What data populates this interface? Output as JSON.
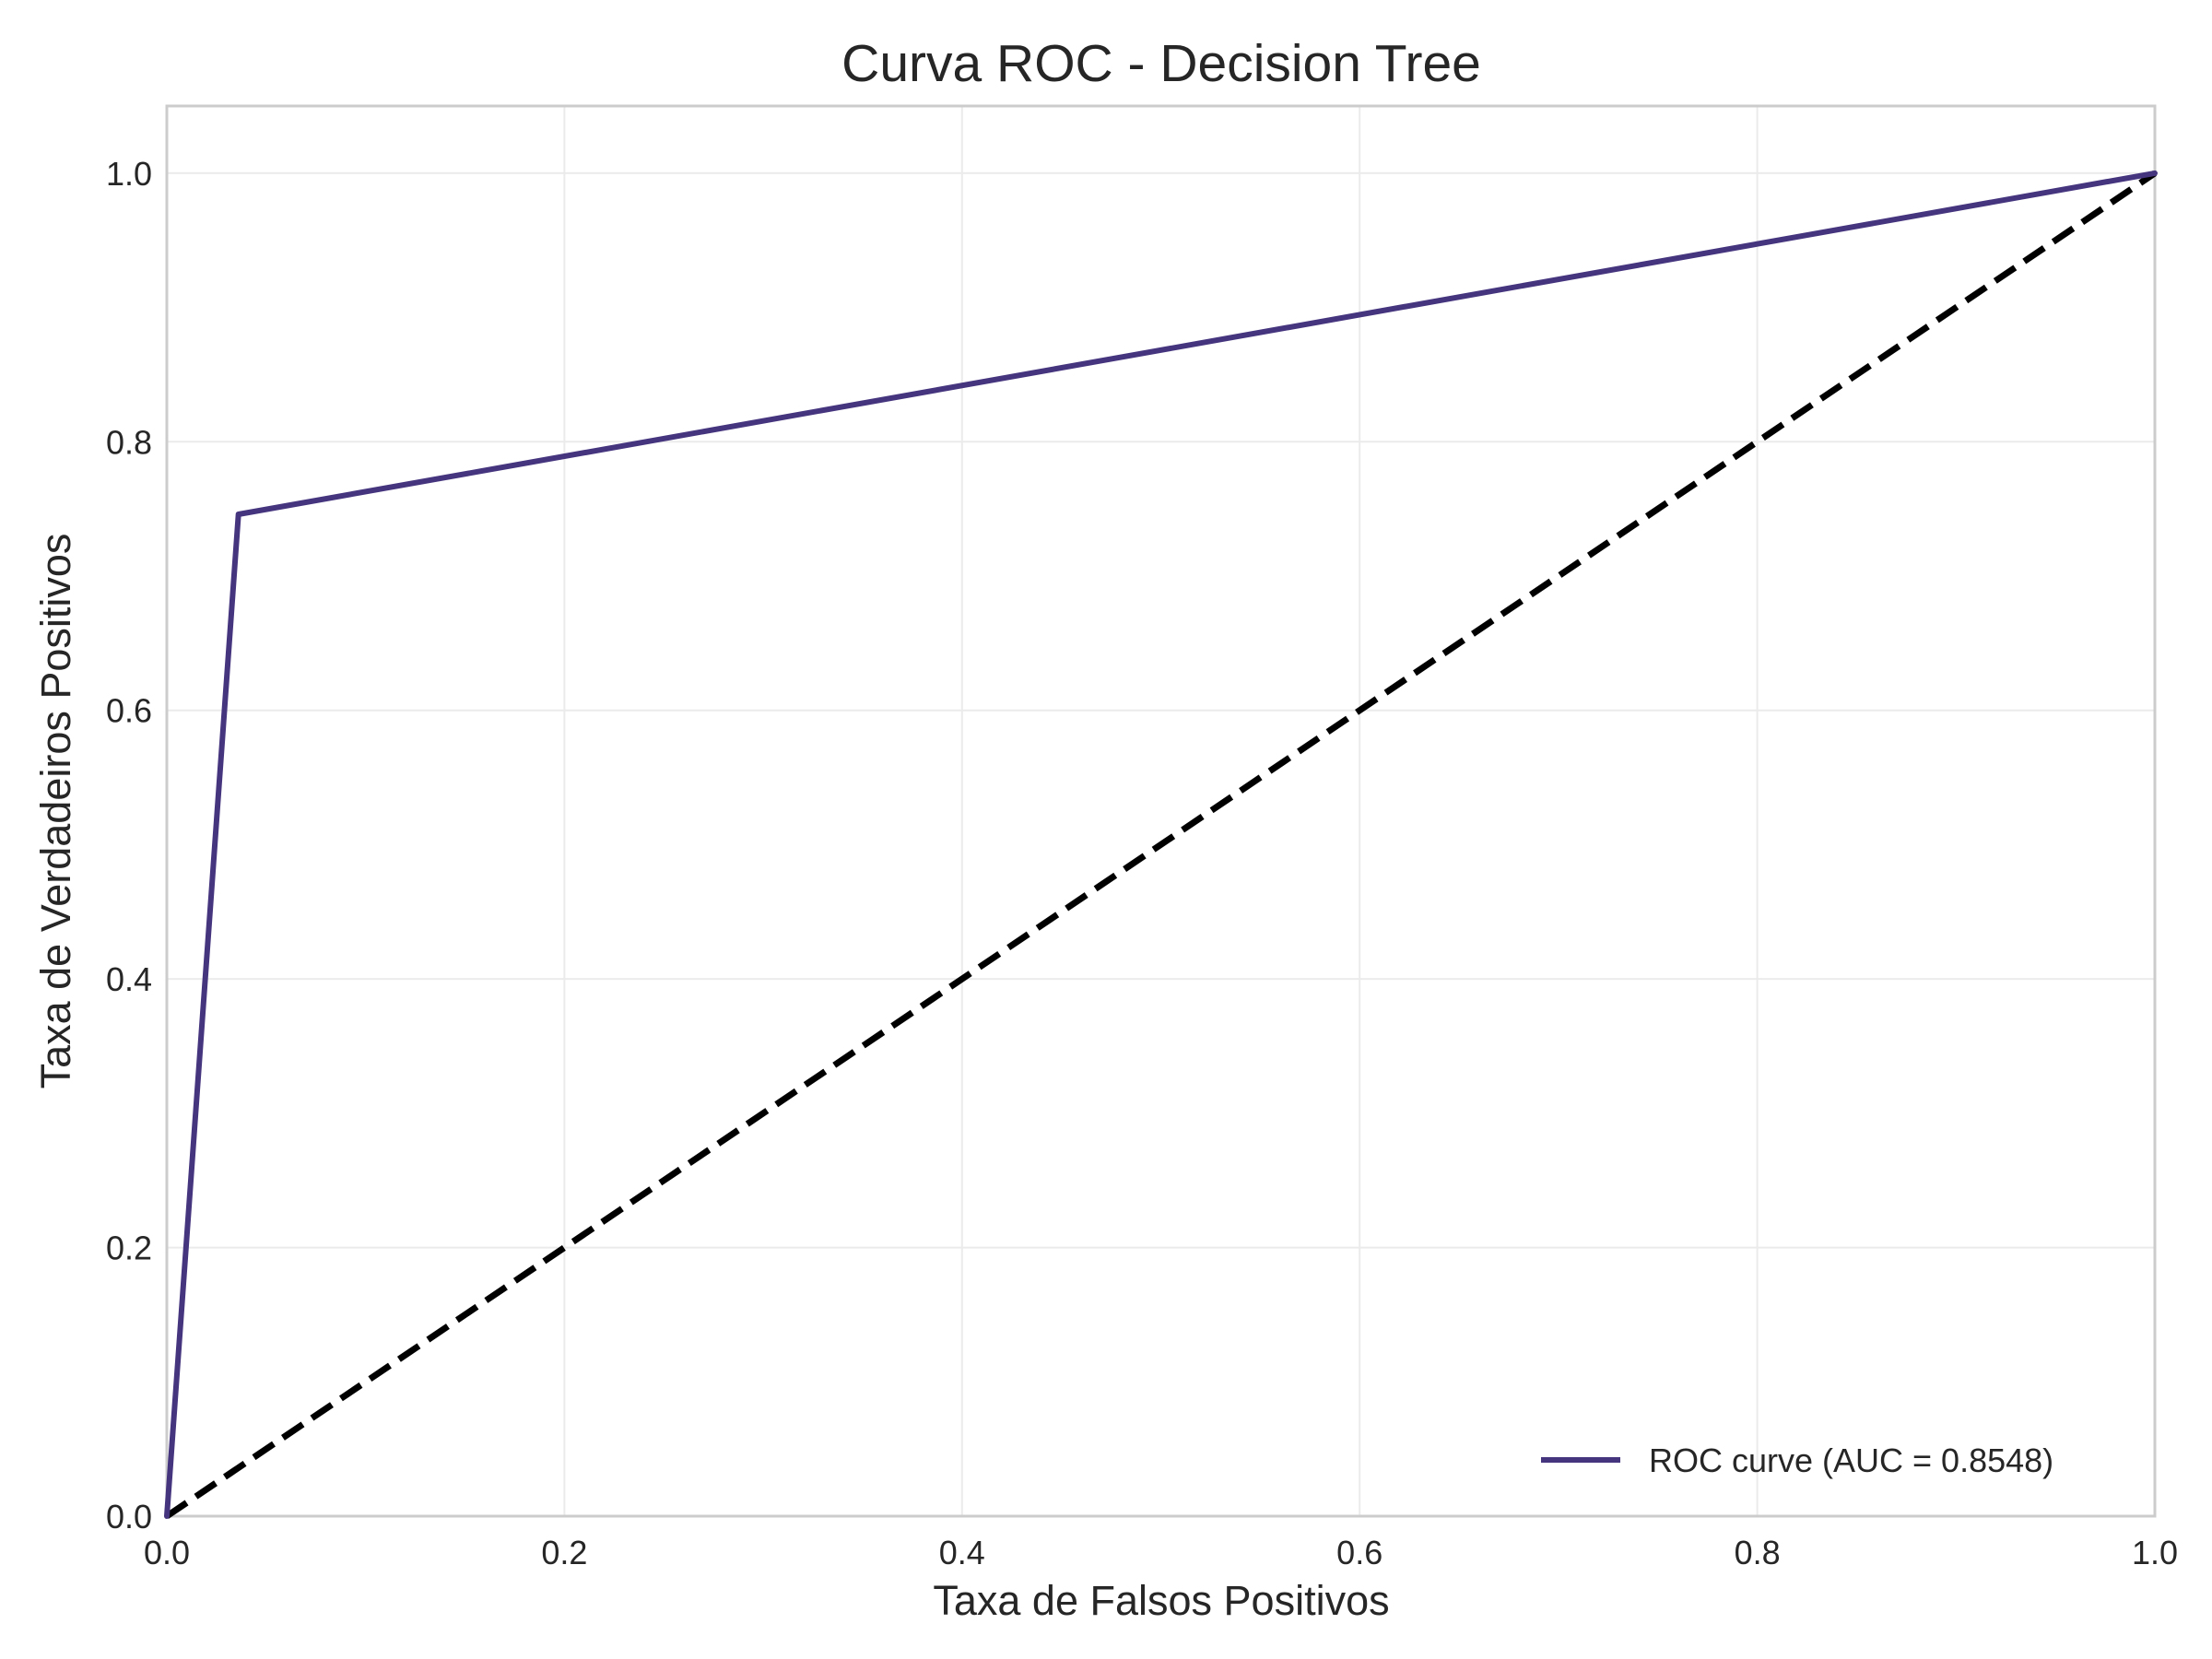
{
  "chart_data": {
    "type": "line",
    "title": "Curva ROC - Decision Tree",
    "xlabel": "Taxa de Falsos Positivos",
    "ylabel": "Taxa de Verdadeiros Positivos",
    "xlim": [
      0.0,
      1.0
    ],
    "ylim": [
      0.0,
      1.05
    ],
    "xticks": [
      "0.0",
      "0.2",
      "0.4",
      "0.6",
      "0.8",
      "1.0"
    ],
    "yticks": [
      "0.0",
      "0.2",
      "0.4",
      "0.6",
      "0.8",
      "1.0"
    ],
    "grid": true,
    "legend_position": "lower-right",
    "series": [
      {
        "name": "ROC curve (AUC = 0.8548)",
        "color": "#45347e",
        "style": "solid",
        "x": [
          0.0,
          0.036,
          1.0
        ],
        "y": [
          0.0,
          0.746,
          1.0
        ]
      },
      {
        "color": "#000000",
        "style": "dashed",
        "x": [
          0.0,
          1.0
        ],
        "y": [
          0.0,
          1.0
        ]
      }
    ]
  }
}
